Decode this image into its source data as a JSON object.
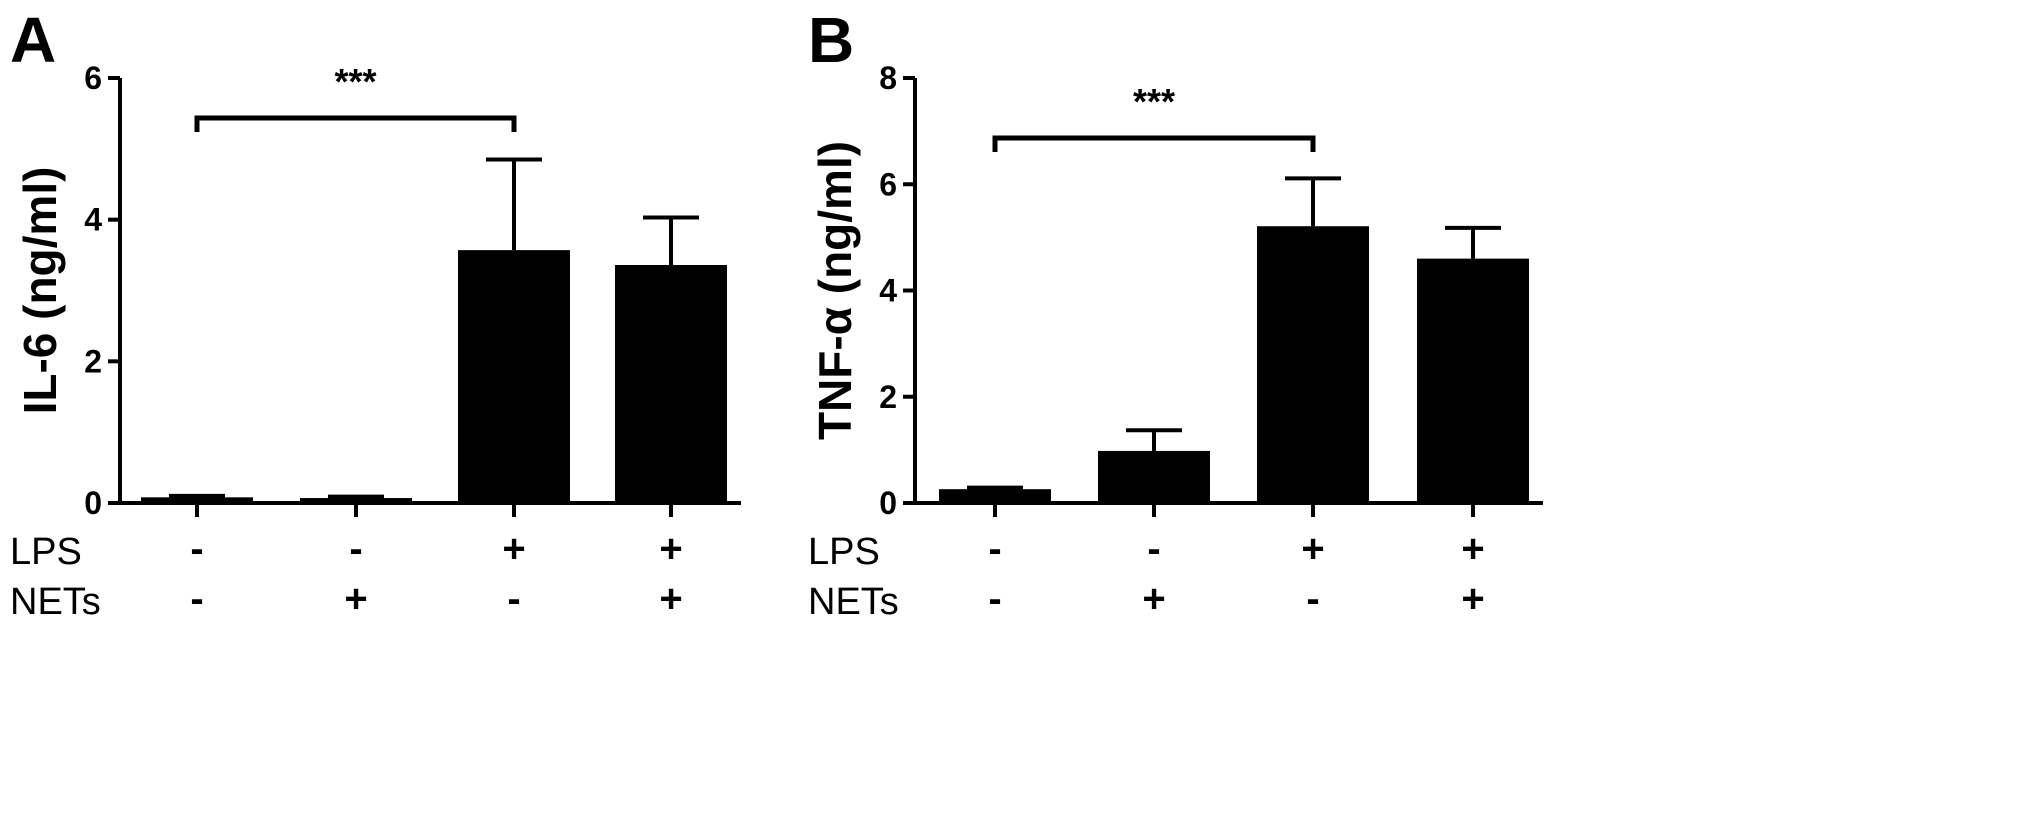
{
  "chart_data": [
    {
      "type": "bar",
      "panel": "A",
      "ylabel": "IL-6 (ng/ml)",
      "ylim": [
        0,
        6
      ],
      "yticks": [
        0,
        2,
        4,
        6
      ],
      "values": [
        0.08,
        0.07,
        3.57,
        3.36
      ],
      "errors": [
        0.02,
        0.02,
        1.28,
        0.67
      ],
      "conditions": [
        {
          "LPS": "-",
          "NETs": "-"
        },
        {
          "LPS": "-",
          "NETs": "+"
        },
        {
          "LPS": "+",
          "NETs": "-"
        },
        {
          "LPS": "+",
          "NETs": "+"
        }
      ],
      "significance": {
        "from": 0,
        "to": 2,
        "label": "***"
      },
      "row_labels": [
        "LPS",
        "NETs"
      ],
      "bar_color": "#000000"
    },
    {
      "type": "bar",
      "panel": "B",
      "ylabel": "TNF-α (ng/ml)",
      "ylim": [
        0,
        8
      ],
      "yticks": [
        0,
        2,
        4,
        6,
        8
      ],
      "values": [
        0.26,
        0.98,
        5.21,
        4.6
      ],
      "errors": [
        0.03,
        0.39,
        0.9,
        0.58
      ],
      "conditions": [
        {
          "LPS": "-",
          "NETs": "-"
        },
        {
          "LPS": "-",
          "NETs": "+"
        },
        {
          "LPS": "+",
          "NETs": "-"
        },
        {
          "LPS": "+",
          "NETs": "+"
        }
      ],
      "significance": {
        "from": 0,
        "to": 2,
        "label": "***"
      },
      "row_labels": [
        "LPS",
        "NETs"
      ],
      "bar_color": "#000000"
    }
  ]
}
